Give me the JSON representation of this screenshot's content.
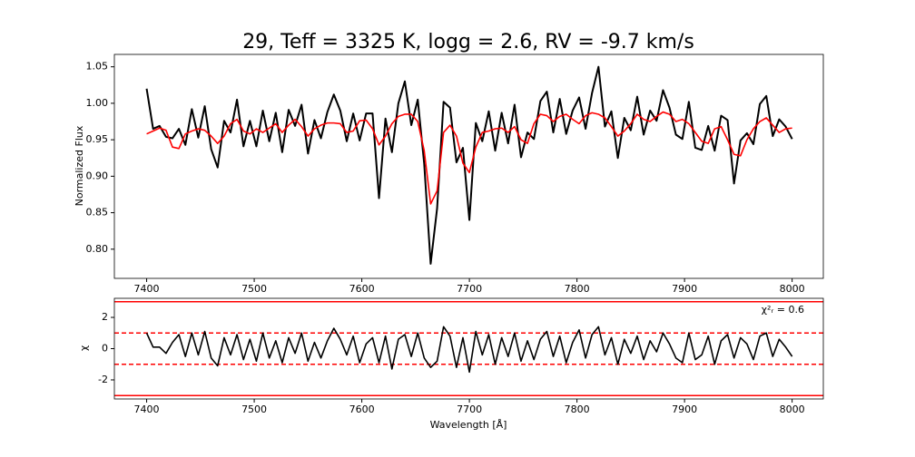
{
  "chart_data": [
    {
      "type": "line",
      "title": "29, Teff = 3325 K, logg = 2.6, RV = -9.7 km/s",
      "y_label": "Normalized Flux",
      "x": [
        7400,
        7406,
        7412,
        7418,
        7424,
        7430,
        7436,
        7442,
        7448,
        7454,
        7460,
        7466,
        7472,
        7478,
        7484,
        7490,
        7496,
        7502,
        7508,
        7514,
        7520,
        7526,
        7532,
        7538,
        7544,
        7550,
        7556,
        7562,
        7568,
        7574,
        7580,
        7586,
        7592,
        7598,
        7604,
        7610,
        7616,
        7622,
        7628,
        7634,
        7640,
        7646,
        7652,
        7658,
        7664,
        7670,
        7676,
        7682,
        7688,
        7694,
        7700,
        7706,
        7712,
        7718,
        7724,
        7730,
        7736,
        7742,
        7748,
        7754,
        7760,
        7766,
        7772,
        7778,
        7784,
        7790,
        7796,
        7802,
        7808,
        7814,
        7820,
        7826,
        7832,
        7838,
        7844,
        7850,
        7856,
        7862,
        7868,
        7874,
        7880,
        7886,
        7892,
        7898,
        7904,
        7910,
        7916,
        7922,
        7928,
        7934,
        7940,
        7946,
        7952,
        7958,
        7964,
        7970,
        7976,
        7982,
        7988,
        7994,
        8000
      ],
      "xlim": [
        7370,
        8029
      ],
      "ylim": [
        0.76,
        1.067
      ],
      "xticks": [
        7400,
        7500,
        7600,
        7700,
        7800,
        7900,
        8000
      ],
      "yticks": [
        {
          "value": 0.8,
          "label": "0.80"
        },
        {
          "value": 0.85,
          "label": "0.85"
        },
        {
          "value": 0.9,
          "label": "0.90"
        },
        {
          "value": 0.95,
          "label": "0.95"
        },
        {
          "value": 1.0,
          "label": "1.00"
        },
        {
          "value": 1.05,
          "label": "1.05"
        }
      ],
      "series": [
        {
          "color": "#000000",
          "values": [
            1.02,
            0.965,
            0.969,
            0.954,
            0.952,
            0.965,
            0.943,
            0.992,
            0.953,
            0.996,
            0.937,
            0.912,
            0.976,
            0.96,
            1.005,
            0.941,
            0.976,
            0.941,
            0.99,
            0.948,
            0.987,
            0.933,
            0.991,
            0.969,
            0.998,
            0.931,
            0.977,
            0.952,
            0.988,
            1.012,
            0.99,
            0.948,
            0.986,
            0.949,
            0.986,
            0.986,
            0.87,
            0.979,
            0.933,
            1.0,
            1.03,
            0.97,
            1.005,
            0.917,
            0.78,
            0.856,
            1.002,
            0.994,
            0.919,
            0.939,
            0.84,
            0.973,
            0.948,
            0.989,
            0.935,
            0.987,
            0.945,
            0.998,
            0.926,
            0.96,
            0.951,
            1.003,
            1.016,
            0.96,
            1.006,
            0.958,
            0.99,
            1.008,
            0.965,
            1.014,
            1.05,
            0.968,
            0.989,
            0.925,
            0.98,
            0.963,
            1.009,
            0.957,
            0.99,
            0.976,
            1.018,
            0.994,
            0.957,
            0.951,
            1.002,
            0.939,
            0.936,
            0.969,
            0.935,
            0.983,
            0.977,
            0.89,
            0.949,
            0.959,
            0.944,
            0.999,
            1.01,
            0.955,
            0.978,
            0.968,
            0.951
          ]
        },
        {
          "color": "#ff0000",
          "values": [
            0.958,
            0.962,
            0.966,
            0.963,
            0.94,
            0.938,
            0.958,
            0.962,
            0.965,
            0.963,
            0.955,
            0.945,
            0.955,
            0.972,
            0.978,
            0.962,
            0.958,
            0.965,
            0.96,
            0.966,
            0.972,
            0.96,
            0.97,
            0.978,
            0.968,
            0.955,
            0.965,
            0.97,
            0.973,
            0.973,
            0.972,
            0.96,
            0.962,
            0.976,
            0.977,
            0.965,
            0.943,
            0.955,
            0.972,
            0.982,
            0.985,
            0.985,
            0.975,
            0.935,
            0.862,
            0.88,
            0.96,
            0.97,
            0.955,
            0.918,
            0.905,
            0.94,
            0.96,
            0.962,
            0.965,
            0.966,
            0.96,
            0.968,
            0.95,
            0.945,
            0.972,
            0.985,
            0.983,
            0.975,
            0.982,
            0.985,
            0.978,
            0.972,
            0.983,
            0.987,
            0.985,
            0.98,
            0.968,
            0.955,
            0.962,
            0.972,
            0.985,
            0.978,
            0.975,
            0.982,
            0.988,
            0.985,
            0.975,
            0.978,
            0.972,
            0.96,
            0.948,
            0.945,
            0.965,
            0.968,
            0.95,
            0.93,
            0.928,
            0.95,
            0.965,
            0.975,
            0.98,
            0.97,
            0.96,
            0.965,
            0.966
          ]
        }
      ]
    },
    {
      "type": "line",
      "x_label": "Wavelength [Å]",
      "y_label": "χ",
      "annotation": "χ²ᵣ = 0.6",
      "x": [
        7400,
        7406,
        7412,
        7418,
        7424,
        7430,
        7436,
        7442,
        7448,
        7454,
        7460,
        7466,
        7472,
        7478,
        7484,
        7490,
        7496,
        7502,
        7508,
        7514,
        7520,
        7526,
        7532,
        7538,
        7544,
        7550,
        7556,
        7562,
        7568,
        7574,
        7580,
        7586,
        7592,
        7598,
        7604,
        7610,
        7616,
        7622,
        7628,
        7634,
        7640,
        7646,
        7652,
        7658,
        7664,
        7670,
        7676,
        7682,
        7688,
        7694,
        7700,
        7706,
        7712,
        7718,
        7724,
        7730,
        7736,
        7742,
        7748,
        7754,
        7760,
        7766,
        7772,
        7778,
        7784,
        7790,
        7796,
        7802,
        7808,
        7814,
        7820,
        7826,
        7832,
        7838,
        7844,
        7850,
        7856,
        7862,
        7868,
        7874,
        7880,
        7886,
        7892,
        7898,
        7904,
        7910,
        7916,
        7922,
        7928,
        7934,
        7940,
        7946,
        7952,
        7958,
        7964,
        7970,
        7976,
        7982,
        7988,
        7994,
        8000
      ],
      "xlim": [
        7370,
        8029
      ],
      "ylim": [
        -3.22,
        3.22
      ],
      "xticks": [
        7400,
        7500,
        7600,
        7700,
        7800,
        7900,
        8000
      ],
      "yticks": [
        -2,
        0,
        2
      ],
      "reference_lines": [
        {
          "value": 3,
          "style": "solid",
          "color": "#ff0000"
        },
        {
          "value": 1,
          "style": "dashed",
          "color": "#ff0000"
        },
        {
          "value": -1,
          "style": "dashed",
          "color": "#ff0000"
        },
        {
          "value": -3,
          "style": "solid",
          "color": "#ff0000"
        }
      ],
      "series": [
        {
          "color": "#000000",
          "values": [
            1.0,
            0.1,
            0.1,
            -0.3,
            0.4,
            0.9,
            -0.5,
            1.0,
            -0.4,
            1.1,
            -0.6,
            -1.1,
            0.7,
            -0.4,
            0.9,
            -0.7,
            0.6,
            -0.8,
            1.0,
            -0.6,
            0.5,
            -0.9,
            0.7,
            -0.3,
            1.0,
            -0.8,
            0.4,
            -0.6,
            0.5,
            1.3,
            0.6,
            -0.4,
            0.8,
            -0.9,
            0.3,
            0.7,
            -0.9,
            0.8,
            -1.3,
            0.6,
            0.9,
            -0.5,
            1.0,
            -0.6,
            -1.2,
            -0.8,
            1.4,
            0.8,
            -1.2,
            0.7,
            -1.5,
            1.1,
            -0.4,
            0.9,
            -1.0,
            0.7,
            -0.5,
            1.0,
            -0.8,
            0.5,
            -0.7,
            0.6,
            1.1,
            -0.5,
            0.8,
            -0.9,
            0.4,
            1.2,
            -0.6,
            0.9,
            1.4,
            -0.4,
            0.7,
            -1.0,
            0.6,
            -0.3,
            0.8,
            -0.7,
            0.5,
            -0.2,
            1.0,
            0.3,
            -0.6,
            -0.9,
            1.0,
            -0.7,
            -0.4,
            0.8,
            -1.0,
            0.5,
            0.9,
            -0.6,
            0.7,
            0.3,
            -0.7,
            0.8,
            1.0,
            -0.5,
            0.6,
            0.1,
            -0.5
          ]
        }
      ]
    }
  ]
}
